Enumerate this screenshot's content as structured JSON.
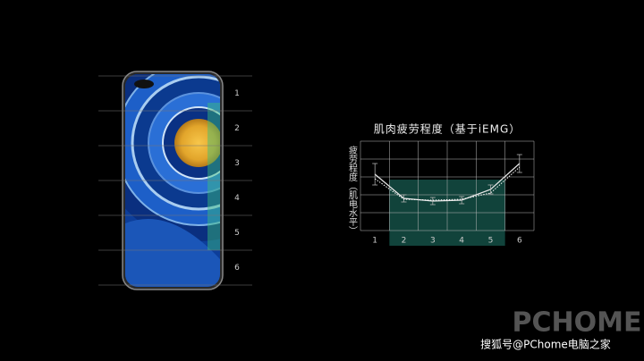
{
  "zone_labels": [
    "1",
    "2",
    "3",
    "4",
    "5",
    "6"
  ],
  "chart_data": {
    "type": "line",
    "title": "肌肉疲劳程度（基于iEMG）",
    "y_label": "疲劳程度（肌电水平）",
    "categories": [
      "1",
      "2",
      "3",
      "4",
      "5",
      "6"
    ],
    "ylim": [
      0,
      100
    ],
    "series": [
      {
        "color": "#e8e8e8",
        "style": "solid",
        "values": [
          63,
          36,
          33,
          34,
          46,
          75
        ],
        "errors": [
          12,
          4,
          4,
          4,
          5,
          10
        ]
      },
      {
        "color": "#ffffff",
        "style": "dotted",
        "values": [
          58,
          35,
          34,
          35,
          42,
          71
        ]
      }
    ]
  },
  "watermark": {
    "logo": "PCHOME",
    "text": "搜狐号@PChome电脑之家"
  }
}
